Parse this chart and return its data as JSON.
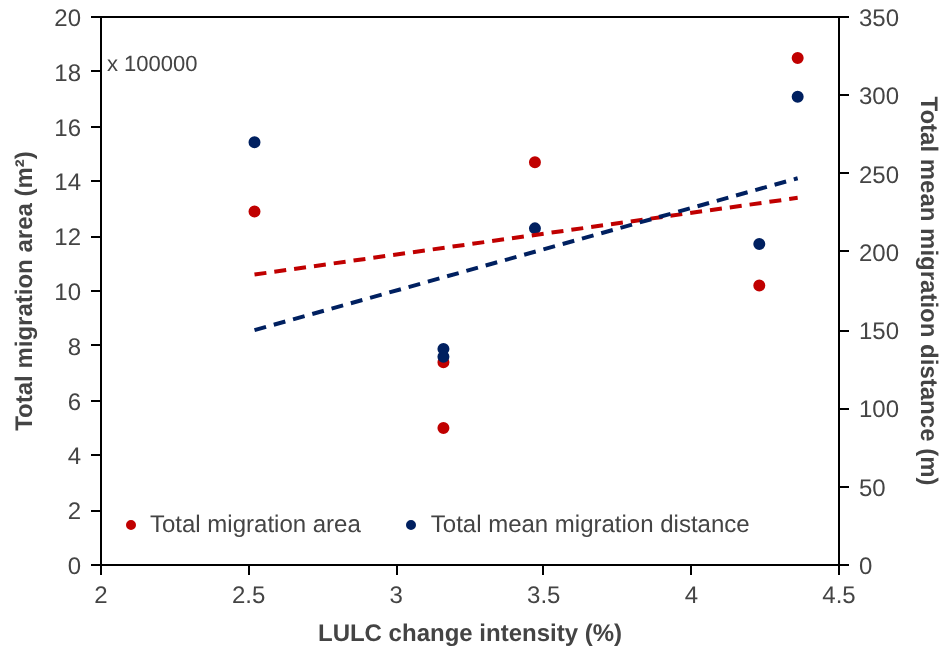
{
  "chart_data": {
    "type": "scatter",
    "xlabel": "LULC change intensity (%)",
    "ylabel": "Total migration area (m²)",
    "y2label": "Total mean migration distance (m)",
    "annotations": [
      "x 100000"
    ],
    "xlim": [
      2,
      4.5
    ],
    "xticks": [
      2,
      2.5,
      3,
      3.5,
      4,
      4.5
    ],
    "ylim": [
      0,
      20
    ],
    "yticks": [
      0,
      2,
      4,
      6,
      8,
      10,
      12,
      14,
      16,
      18,
      20
    ],
    "y2lim": [
      0,
      350
    ],
    "y2ticks": [
      0,
      50,
      100,
      150,
      200,
      250,
      300,
      350
    ],
    "grid": false,
    "legend": "bottom left",
    "marker": "circle",
    "series": [
      {
        "name": "Total migration area",
        "color": "#c00000",
        "x": [
          2.52,
          3.16,
          3.16,
          3.47,
          4.23,
          4.36
        ],
        "values": [
          12.9,
          7.4,
          5.0,
          14.7,
          10.2,
          18.5
        ]
      },
      {
        "name": "Total mean migration distance",
        "color": "#002060",
        "axis": "y2",
        "x": [
          2.52,
          3.16,
          3.16,
          3.47,
          4.23,
          4.36
        ],
        "values": [
          270,
          138,
          133,
          215,
          205,
          299
        ]
      },
      {
        "type": "line",
        "marker": "none",
        "line_style": "dashed",
        "color": "#c00000",
        "x": [
          2.52,
          4.36
        ],
        "values": [
          10.6,
          13.4
        ]
      },
      {
        "type": "line",
        "marker": "none",
        "line_style": "dashed",
        "color": "#002060",
        "axis": "y2",
        "x": [
          2.52,
          4.36
        ],
        "values": [
          150,
          247
        ]
      }
    ]
  }
}
